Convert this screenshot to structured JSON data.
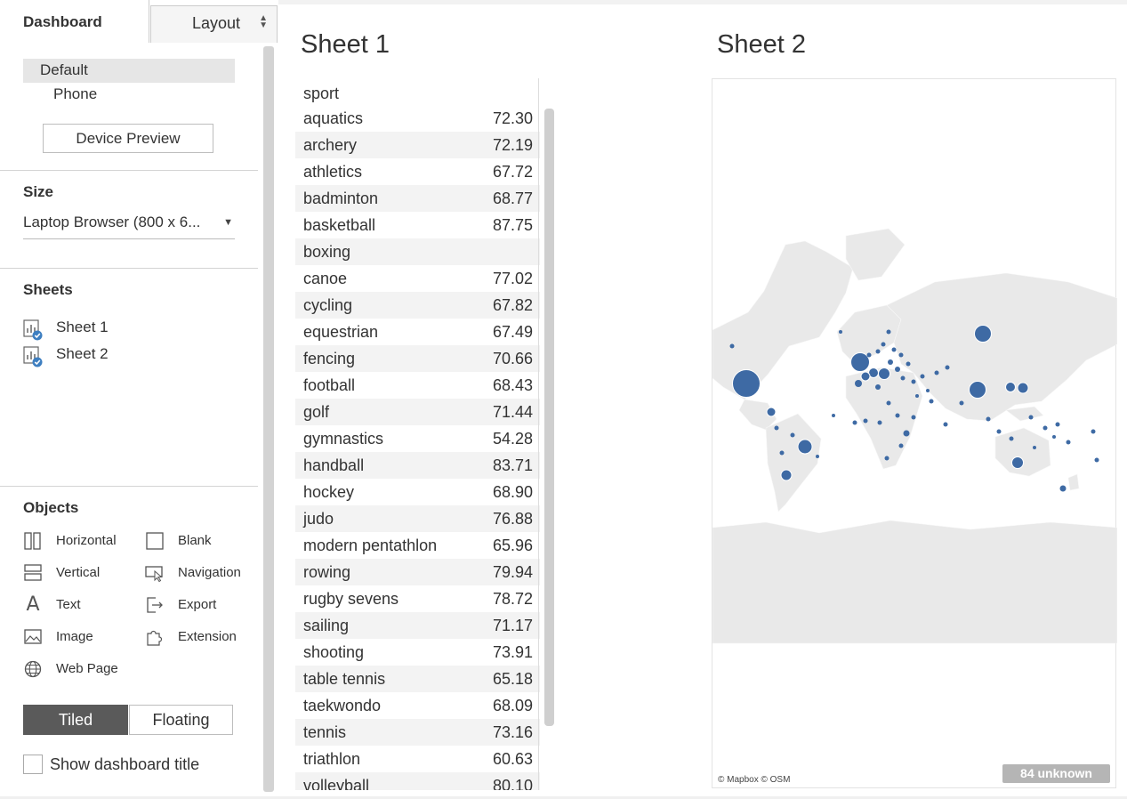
{
  "sidebar": {
    "tabs": {
      "dashboard": "Dashboard",
      "layout": "Layout"
    },
    "device": {
      "default_label": "Default",
      "phone_label": "Phone",
      "preview_button": "Device Preview"
    },
    "size": {
      "title": "Size",
      "selected": "Laptop Browser (800 x 6..."
    },
    "sheets": {
      "title": "Sheets",
      "items": [
        "Sheet 1",
        "Sheet 2"
      ]
    },
    "objects": {
      "title": "Objects",
      "items": [
        {
          "label": "Horizontal",
          "icon": "horizontal-container-icon"
        },
        {
          "label": "Blank",
          "icon": "blank-icon"
        },
        {
          "label": "Vertical",
          "icon": "vertical-container-icon"
        },
        {
          "label": "Navigation",
          "icon": "navigation-icon"
        },
        {
          "label": "Text",
          "icon": "text-icon"
        },
        {
          "label": "Export",
          "icon": "export-icon"
        },
        {
          "label": "Image",
          "icon": "image-icon"
        },
        {
          "label": "Extension",
          "icon": "extension-icon"
        },
        {
          "label": "Web Page",
          "icon": "globe-icon"
        }
      ]
    },
    "layout_mode": {
      "tiled": "Tiled",
      "floating": "Floating",
      "selected": "Tiled"
    },
    "show_title": {
      "label": "Show dashboard title",
      "checked": false
    }
  },
  "sheet1": {
    "title": "Sheet 1",
    "column_header": "sport",
    "rows": [
      {
        "sport": "aquatics",
        "value": "72.30"
      },
      {
        "sport": "archery",
        "value": "72.19"
      },
      {
        "sport": "athletics",
        "value": "67.72"
      },
      {
        "sport": "badminton",
        "value": "68.77"
      },
      {
        "sport": "basketball",
        "value": "87.75"
      },
      {
        "sport": "boxing",
        "value": ""
      },
      {
        "sport": "canoe",
        "value": "77.02"
      },
      {
        "sport": "cycling",
        "value": "67.82"
      },
      {
        "sport": "equestrian",
        "value": "67.49"
      },
      {
        "sport": "fencing",
        "value": "70.66"
      },
      {
        "sport": "football",
        "value": "68.43"
      },
      {
        "sport": "golf",
        "value": "71.44"
      },
      {
        "sport": "gymnastics",
        "value": "54.28"
      },
      {
        "sport": "handball",
        "value": "83.71"
      },
      {
        "sport": "hockey",
        "value": "68.90"
      },
      {
        "sport": "judo",
        "value": "76.88"
      },
      {
        "sport": "modern pentathlon",
        "value": "65.96"
      },
      {
        "sport": "rowing",
        "value": "79.94"
      },
      {
        "sport": "rugby sevens",
        "value": "78.72"
      },
      {
        "sport": "sailing",
        "value": "71.17"
      },
      {
        "sport": "shooting",
        "value": "73.91"
      },
      {
        "sport": "table tennis",
        "value": "65.18"
      },
      {
        "sport": "taekwondo",
        "value": "68.09"
      },
      {
        "sport": "tennis",
        "value": "73.16"
      },
      {
        "sport": "triathlon",
        "value": "60.63"
      },
      {
        "sport": "volleyball",
        "value": "80.10"
      }
    ]
  },
  "sheet2": {
    "title": "Sheet 2",
    "attribution": "© Mapbox © OSM",
    "unknown_badge": "84 unknown",
    "mark_color": "#3e6aa4",
    "land_color": "#e9e9e9"
  }
}
